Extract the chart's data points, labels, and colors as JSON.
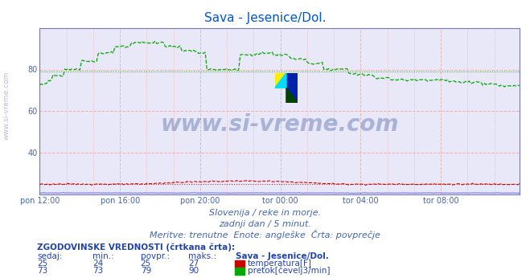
{
  "title": "Sava - Jesenice/Dol.",
  "title_color": "#0055cc",
  "bg_color": "#ffffff",
  "plot_bg_color": "#e8e8f8",
  "ylabel_color": "#4466aa",
  "xlabel_color": "#4466aa",
  "xlim": [
    0,
    287
  ],
  "ylim": [
    20,
    100
  ],
  "yticks": [
    40,
    60,
    80
  ],
  "xtick_labels": [
    "pon 12:00",
    "pon 16:00",
    "pon 20:00",
    "tor 00:00",
    "tor 04:00",
    "tor 08:00"
  ],
  "xtick_positions": [
    0,
    48,
    96,
    144,
    192,
    240
  ],
  "watermark_text": "www.si-vreme.com",
  "sub_text1": "Slovenija / reke in morje.",
  "sub_text2": "zadnji dan / 5 minut.",
  "sub_text3": "Meritve: trenutne  Enote: angleške  Črta: povprečje",
  "legend_title": "ZGODOVINSKE VREDNOSTI (črtkana črta):",
  "legend_headers": [
    "sedaj:",
    "min.:",
    "povpr.:",
    "maks.:",
    "Sava - Jesenice/Dol."
  ],
  "legend_row1": [
    "25",
    "24",
    "25",
    "27",
    "temperatura[F]"
  ],
  "legend_row2": [
    "73",
    "73",
    "79",
    "90",
    "pretok[čevelj3/min]"
  ],
  "temp_avg": 25,
  "flow_avg": 79,
  "temp_color": "#cc0000",
  "flow_color": "#00aa00",
  "height_color": "#6666ff",
  "grid_color": "#ffaaaa",
  "vgrid_color": "#ddbbbb",
  "spine_color": "#7777bb"
}
